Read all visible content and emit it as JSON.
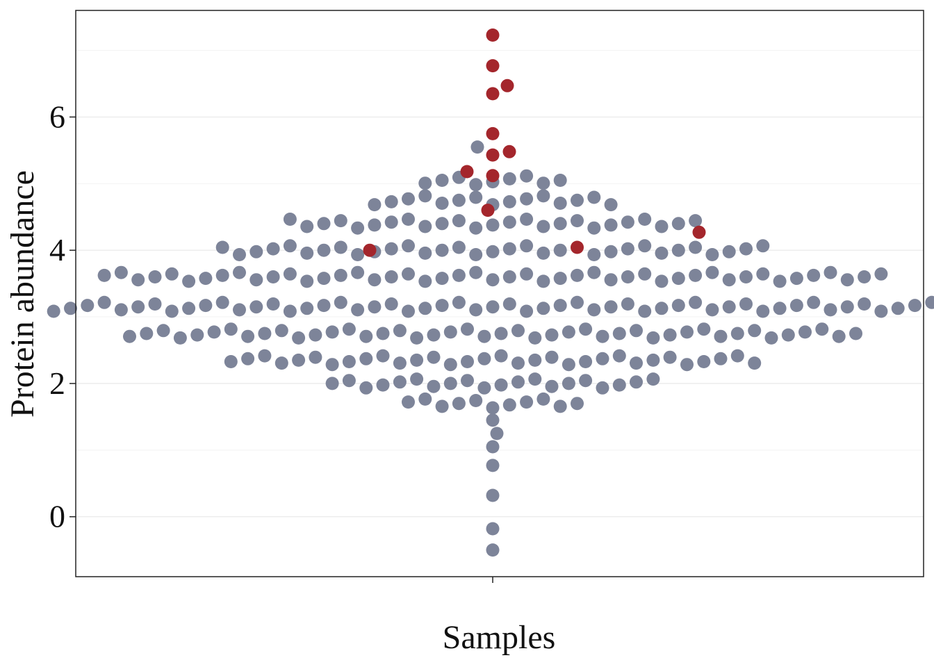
{
  "chart_data": {
    "type": "scatter",
    "subtype": "beeswarm",
    "xlabel": "Samples",
    "ylabel": "Protein abundance",
    "ylim": [
      -0.9,
      7.6
    ],
    "yticks": [
      0,
      2,
      4,
      6
    ],
    "grid": "horizontal major and minor lines",
    "legend": "none",
    "colors": {
      "normal": "#7d8499",
      "highlighted": "#a4262c"
    },
    "swarm_rows": [
      {
        "y": 3.15,
        "count": 53,
        "highlighted": []
      },
      {
        "y": 3.6,
        "count": 47,
        "highlighted": []
      },
      {
        "y": 2.75,
        "count": 44,
        "highlighted": []
      },
      {
        "y": 4.0,
        "count": 33,
        "highlighted": [
          21
        ]
      },
      {
        "y": 2.35,
        "count": 32,
        "highlighted": []
      },
      {
        "y": 4.4,
        "count": 25,
        "highlighted": []
      },
      {
        "y": 2.0,
        "count": 20,
        "highlighted": []
      },
      {
        "y": 4.75,
        "count": 15,
        "highlighted": []
      },
      {
        "y": 1.7,
        "count": 11,
        "highlighted": []
      },
      {
        "y": 5.05,
        "count": 9,
        "highlighted": []
      }
    ],
    "center_column": {
      "normal_y": [
        1.45,
        1.25,
        1.05,
        0.77,
        0.32,
        -0.18,
        -0.5,
        5.55
      ],
      "highlighted_y": [
        7.23,
        6.77,
        6.47,
        6.35,
        5.75,
        5.48,
        5.43,
        5.18,
        5.12,
        4.6
      ]
    },
    "outliers": [
      {
        "y": 4.0,
        "side": "left",
        "highlighted": true
      },
      {
        "y": 4.27,
        "side": "right",
        "highlighted": true
      }
    ]
  }
}
